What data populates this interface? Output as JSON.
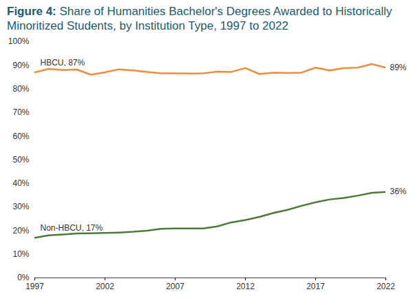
{
  "chart_data": {
    "type": "line",
    "title": "Figure 4: Share of Humanities Bachelor's Degrees Awarded to Historically Minoritized Students, by Institution Type, 1997 to 2022",
    "x": [
      1997,
      1998,
      1999,
      2000,
      2001,
      2002,
      2003,
      2004,
      2005,
      2006,
      2007,
      2008,
      2009,
      2010,
      2011,
      2012,
      2013,
      2014,
      2015,
      2016,
      2017,
      2018,
      2019,
      2020,
      2021,
      2022
    ],
    "series": [
      {
        "name": "HBCU",
        "color": "#f08a3c",
        "start_label": "HBCU, 87%",
        "end_label": "89%",
        "values": [
          87,
          88.5,
          88,
          88.2,
          86,
          87,
          88.3,
          87.8,
          87.2,
          86.6,
          86.6,
          86.5,
          86.6,
          87.3,
          87.2,
          88.8,
          86.3,
          86.9,
          86.7,
          86.9,
          89,
          87.8,
          88.8,
          89,
          90.5,
          89
        ]
      },
      {
        "name": "Non-HBCU",
        "color": "#4b7a38",
        "start_label": "Non-HBCU, 17%",
        "end_label": "36%",
        "values": [
          17,
          18,
          18.4,
          18.8,
          18.9,
          19,
          19.2,
          19.5,
          20,
          20.8,
          20.9,
          20.9,
          20.9,
          21.8,
          23.5,
          24.5,
          25.8,
          27.5,
          28.8,
          30.5,
          32,
          33.2,
          33.8,
          34.8,
          36,
          36.4
        ]
      }
    ],
    "xlim": [
      1997,
      2022
    ],
    "xticks": [
      1997,
      2002,
      2007,
      2012,
      2017,
      2022
    ],
    "ylim": [
      0,
      100
    ],
    "yticks": [
      {
        "value": 0,
        "label": "0%"
      },
      {
        "value": 10,
        "label": "10%"
      },
      {
        "value": 20,
        "label": "20%"
      },
      {
        "value": 30,
        "label": "30%"
      },
      {
        "value": 40,
        "label": "40%"
      },
      {
        "value": 50,
        "label": "50%"
      },
      {
        "value": 60,
        "label": "60%"
      },
      {
        "value": 70,
        "label": "70%"
      },
      {
        "value": 80,
        "label": "80%"
      },
      {
        "value": 90,
        "label": "90%"
      },
      {
        "value": 100,
        "label": "100%"
      }
    ],
    "grid": false
  }
}
